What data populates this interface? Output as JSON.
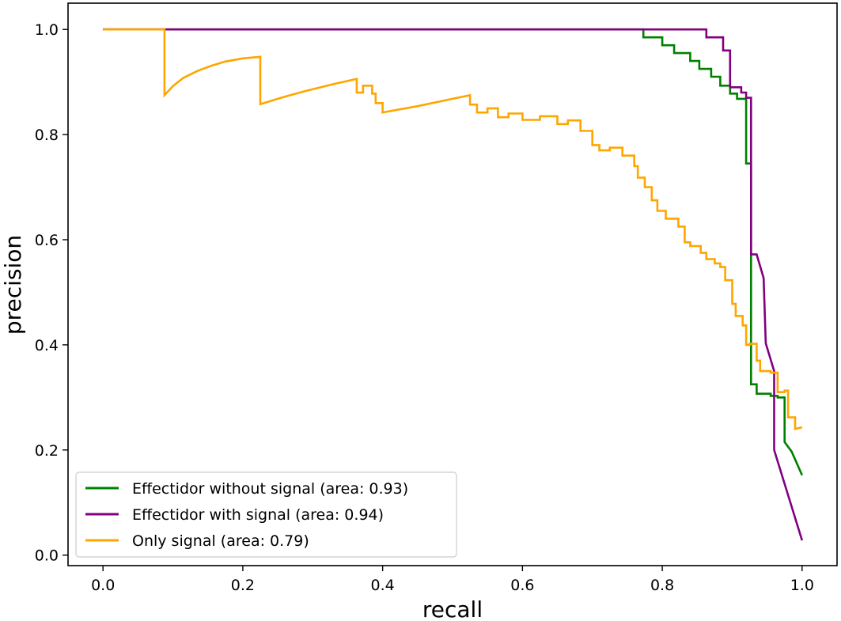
{
  "chart_data": {
    "type": "line",
    "title": "",
    "xlabel": "recall",
    "ylabel": "precision",
    "xlim": [
      -0.05,
      1.05
    ],
    "ylim": [
      -0.02,
      1.05
    ],
    "xticks": [
      0.0,
      0.2,
      0.4,
      0.6,
      0.8,
      1.0
    ],
    "xtick_labels": [
      "0.0",
      "0.2",
      "0.4",
      "0.6",
      "0.8",
      "1.0"
    ],
    "yticks": [
      0.0,
      0.2,
      0.4,
      0.6,
      0.8,
      1.0
    ],
    "ytick_labels": [
      "0.0",
      "0.2",
      "0.4",
      "0.6",
      "0.8",
      "1.0"
    ],
    "grid": false,
    "legend_position": "bottom-left",
    "series": [
      {
        "name": "Effectidor without signal (area: 0.93)",
        "color": "#008000",
        "x": [
          0.0,
          0.773,
          0.773,
          0.8,
          0.8,
          0.817,
          0.817,
          0.84,
          0.84,
          0.853,
          0.853,
          0.87,
          0.87,
          0.883,
          0.883,
          0.897,
          0.897,
          0.907,
          0.907,
          0.92,
          0.92,
          0.927,
          0.927,
          0.935,
          0.935,
          0.955,
          0.955,
          0.965,
          0.965,
          0.975,
          0.975,
          0.975,
          0.975,
          0.985,
          1.0
        ],
        "y": [
          1.0,
          1.0,
          0.985,
          0.985,
          0.97,
          0.97,
          0.955,
          0.955,
          0.94,
          0.94,
          0.925,
          0.925,
          0.91,
          0.91,
          0.893,
          0.893,
          0.878,
          0.878,
          0.868,
          0.868,
          0.745,
          0.745,
          0.325,
          0.325,
          0.307,
          0.307,
          0.303,
          0.303,
          0.3,
          0.3,
          0.262,
          0.262,
          0.215,
          0.197,
          0.152
        ]
      },
      {
        "name": "Effectidor with signal (area: 0.94)",
        "color": "#800080",
        "x": [
          0.0,
          0.863,
          0.863,
          0.887,
          0.887,
          0.897,
          0.897,
          0.913,
          0.913,
          0.92,
          0.92,
          0.927,
          0.927,
          0.935,
          0.945,
          0.948,
          0.96,
          0.96,
          1.0
        ],
        "y": [
          1.0,
          1.0,
          0.985,
          0.985,
          0.96,
          0.96,
          0.89,
          0.89,
          0.88,
          0.88,
          0.87,
          0.87,
          0.572,
          0.572,
          0.527,
          0.403,
          0.35,
          0.2,
          0.028
        ]
      },
      {
        "name": "Only signal (area: 0.79)",
        "color": "#FFA500",
        "x": [
          0.0,
          0.088,
          0.088,
          0.1,
          0.115,
          0.135,
          0.155,
          0.175,
          0.2,
          0.225,
          0.225,
          0.26,
          0.29,
          0.33,
          0.363,
          0.363,
          0.372,
          0.372,
          0.385,
          0.385,
          0.39,
          0.39,
          0.4,
          0.4,
          0.45,
          0.5,
          0.525,
          0.525,
          0.535,
          0.535,
          0.55,
          0.55,
          0.565,
          0.565,
          0.58,
          0.58,
          0.6,
          0.6,
          0.625,
          0.625,
          0.65,
          0.65,
          0.665,
          0.665,
          0.683,
          0.683,
          0.7,
          0.7,
          0.71,
          0.71,
          0.725,
          0.725,
          0.743,
          0.743,
          0.76,
          0.76,
          0.765,
          0.765,
          0.775,
          0.775,
          0.785,
          0.785,
          0.793,
          0.793,
          0.805,
          0.805,
          0.823,
          0.823,
          0.832,
          0.832,
          0.84,
          0.84,
          0.855,
          0.855,
          0.863,
          0.863,
          0.875,
          0.875,
          0.883,
          0.883,
          0.89,
          0.89,
          0.9,
          0.9,
          0.905,
          0.905,
          0.915,
          0.915,
          0.92,
          0.92,
          0.925,
          0.925,
          0.935,
          0.935,
          0.94,
          0.94,
          0.955,
          0.955,
          0.965,
          0.965,
          0.975,
          0.975,
          0.98,
          0.98,
          0.99,
          0.99,
          1.0
        ],
        "y": [
          1.0,
          1.0,
          0.875,
          0.892,
          0.908,
          0.921,
          0.931,
          0.939,
          0.945,
          0.948,
          0.858,
          0.872,
          0.883,
          0.896,
          0.906,
          0.88,
          0.88,
          0.893,
          0.893,
          0.878,
          0.878,
          0.86,
          0.86,
          0.842,
          0.854,
          0.868,
          0.875,
          0.857,
          0.857,
          0.842,
          0.842,
          0.85,
          0.85,
          0.833,
          0.833,
          0.84,
          0.84,
          0.828,
          0.828,
          0.835,
          0.835,
          0.82,
          0.82,
          0.827,
          0.827,
          0.807,
          0.807,
          0.78,
          0.78,
          0.77,
          0.77,
          0.775,
          0.775,
          0.76,
          0.76,
          0.74,
          0.74,
          0.718,
          0.718,
          0.7,
          0.7,
          0.675,
          0.675,
          0.655,
          0.655,
          0.64,
          0.64,
          0.625,
          0.625,
          0.595,
          0.595,
          0.588,
          0.588,
          0.575,
          0.575,
          0.563,
          0.563,
          0.555,
          0.555,
          0.548,
          0.548,
          0.523,
          0.523,
          0.478,
          0.478,
          0.455,
          0.455,
          0.437,
          0.437,
          0.4,
          0.4,
          0.402,
          0.402,
          0.37,
          0.37,
          0.35,
          0.35,
          0.347,
          0.347,
          0.31,
          0.31,
          0.313,
          0.313,
          0.262,
          0.262,
          0.24,
          0.243
        ]
      }
    ]
  }
}
